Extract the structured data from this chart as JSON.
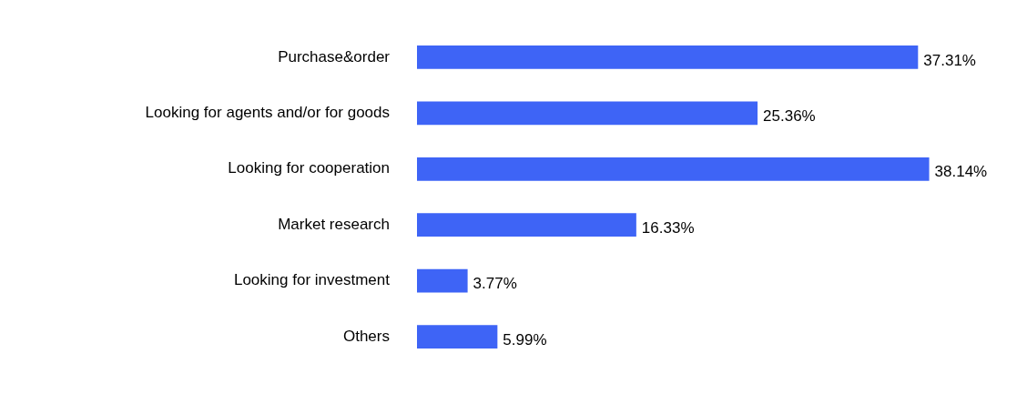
{
  "chart_data": {
    "type": "bar",
    "orientation": "horizontal",
    "categories": [
      "Purchase&order",
      "Looking for agents and/or for goods",
      "Looking for cooperation",
      "Market research",
      "Looking for investment",
      "Others"
    ],
    "values": [
      37.31,
      25.36,
      38.14,
      16.33,
      3.77,
      5.99
    ],
    "value_labels": [
      "37.31%",
      "25.36%",
      "38.14%",
      "16.33%",
      "3.77%",
      "5.99%"
    ],
    "color": "#3e64f6",
    "tick_labels": "y"
  }
}
